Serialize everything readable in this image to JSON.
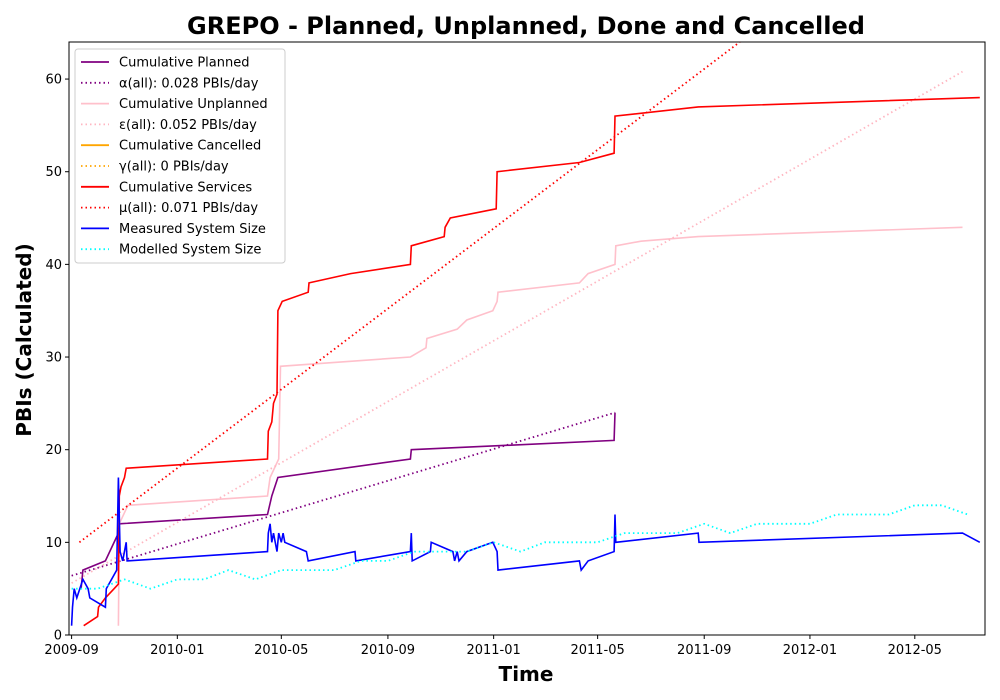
{
  "chart_data": {
    "type": "line",
    "title": "GREPO - Planned, Unplanned, Done  and Cancelled",
    "xlabel": "Time",
    "ylabel": "PBIs (Calculated)",
    "xlim": [
      "2009-08-29",
      "2012-07-21"
    ],
    "ylim": [
      0,
      64
    ],
    "x_ticks": [
      "2009-09",
      "2010-01",
      "2010-05",
      "2010-09",
      "2011-01",
      "2011-05",
      "2011-09",
      "2012-01",
      "2012-05"
    ],
    "y_ticks": [
      0,
      10,
      20,
      30,
      40,
      50,
      60
    ],
    "grid": false,
    "legend_position": "top-left",
    "series": [
      {
        "name": "Cumulative Planned",
        "color": "#800080",
        "style": "solid",
        "points": [
          [
            "2009-09-12",
            5
          ],
          [
            "2009-09-14",
            7
          ],
          [
            "2009-10-10",
            8
          ],
          [
            "2009-10-25",
            11
          ],
          [
            "2009-10-26",
            12
          ],
          [
            "2010-04-15",
            13
          ],
          [
            "2010-04-20",
            15
          ],
          [
            "2010-04-27",
            17
          ],
          [
            "2010-09-27",
            19
          ],
          [
            "2010-09-28",
            20
          ],
          [
            "2011-05-20",
            21
          ],
          [
            "2011-05-21",
            24
          ]
        ]
      },
      {
        "name": "α(all): 0.028 PBIs/day",
        "color": "#800080",
        "style": "dotted",
        "points": [
          [
            "2009-09-01",
            6.4
          ],
          [
            "2011-05-21",
            24
          ]
        ]
      },
      {
        "name": "Cumulative Unplanned",
        "color": "#ffc0cb",
        "style": "solid",
        "points": [
          [
            "2009-10-25",
            1
          ],
          [
            "2009-10-26",
            12
          ],
          [
            "2009-11-05",
            14
          ],
          [
            "2010-04-15",
            15
          ],
          [
            "2010-04-18",
            17
          ],
          [
            "2010-04-28",
            19
          ],
          [
            "2010-04-30",
            29
          ],
          [
            "2010-09-27",
            30
          ],
          [
            "2010-10-15",
            31
          ],
          [
            "2010-10-16",
            32
          ],
          [
            "2010-11-20",
            33
          ],
          [
            "2010-12-01",
            34
          ],
          [
            "2010-12-31",
            35
          ],
          [
            "2011-01-05",
            36
          ],
          [
            "2011-01-06",
            37
          ],
          [
            "2011-04-10",
            38
          ],
          [
            "2011-04-20",
            39
          ],
          [
            "2011-05-21",
            40
          ],
          [
            "2011-05-22",
            42
          ],
          [
            "2011-06-20",
            42.5
          ],
          [
            "2011-08-25",
            43
          ],
          [
            "2012-06-25",
            44
          ]
        ]
      },
      {
        "name": "ε(all): 0.052 PBIs/day",
        "color": "#ffb6c1",
        "style": "dotted",
        "points": [
          [
            "2009-09-01",
            5.6
          ],
          [
            "2012-06-25",
            60.8
          ]
        ]
      },
      {
        "name": "Cumulative Cancelled",
        "color": "#ffa500",
        "style": "solid",
        "points": []
      },
      {
        "name": "γ(all): 0 PBIs/day",
        "color": "#ffa500",
        "style": "dotted",
        "points": []
      },
      {
        "name": "Cumulative Services",
        "color": "#ff0000",
        "style": "solid",
        "points": [
          [
            "2009-09-15",
            1
          ],
          [
            "2009-10-01",
            2
          ],
          [
            "2009-10-02",
            3
          ],
          [
            "2009-10-10",
            4
          ],
          [
            "2009-10-20",
            5
          ],
          [
            "2009-10-25",
            5.5
          ],
          [
            "2009-10-26",
            15
          ],
          [
            "2009-10-28",
            16
          ],
          [
            "2009-11-01",
            17
          ],
          [
            "2009-11-03",
            18
          ],
          [
            "2010-04-15",
            19
          ],
          [
            "2010-04-16",
            22
          ],
          [
            "2010-04-20",
            23
          ],
          [
            "2010-04-22",
            25
          ],
          [
            "2010-04-26",
            26
          ],
          [
            "2010-04-27",
            35
          ],
          [
            "2010-05-02",
            36
          ],
          [
            "2010-06-01",
            37
          ],
          [
            "2010-06-02",
            38
          ],
          [
            "2010-07-20",
            39
          ],
          [
            "2010-09-27",
            40
          ],
          [
            "2010-09-28",
            42
          ],
          [
            "2010-11-05",
            43
          ],
          [
            "2010-11-06",
            44
          ],
          [
            "2010-11-12",
            45
          ],
          [
            "2011-01-04",
            46
          ],
          [
            "2011-01-05",
            50
          ],
          [
            "2011-04-10",
            51
          ],
          [
            "2011-05-20",
            52
          ],
          [
            "2011-05-21",
            56
          ],
          [
            "2011-08-25",
            57
          ],
          [
            "2012-07-15",
            58
          ]
        ]
      },
      {
        "name": "μ(all): 0.071 PBIs/day",
        "color": "#ff0000",
        "style": "dotted",
        "points": [
          [
            "2009-09-10",
            10
          ],
          [
            "2011-10-12",
            64
          ]
        ]
      },
      {
        "name": "Measured System Size",
        "color": "#0000ff",
        "style": "solid",
        "points": [
          [
            "2009-09-01",
            1
          ],
          [
            "2009-09-02",
            3
          ],
          [
            "2009-09-04",
            5
          ],
          [
            "2009-09-07",
            4
          ],
          [
            "2009-09-14",
            6
          ],
          [
            "2009-09-20",
            5
          ],
          [
            "2009-09-22",
            4
          ],
          [
            "2009-10-10",
            3
          ],
          [
            "2009-10-11",
            5
          ],
          [
            "2009-10-23",
            7
          ],
          [
            "2009-10-25",
            17
          ],
          [
            "2009-10-27",
            9
          ],
          [
            "2009-10-30",
            8
          ],
          [
            "2009-11-03",
            10
          ],
          [
            "2009-11-04",
            8
          ],
          [
            "2010-04-15",
            9
          ],
          [
            "2010-04-16",
            11
          ],
          [
            "2010-04-18",
            12
          ],
          [
            "2010-04-20",
            10
          ],
          [
            "2010-04-22",
            11
          ],
          [
            "2010-04-26",
            9
          ],
          [
            "2010-04-28",
            11
          ],
          [
            "2010-05-01",
            10
          ],
          [
            "2010-05-03",
            11
          ],
          [
            "2010-05-05",
            10
          ],
          [
            "2010-05-30",
            9
          ],
          [
            "2010-06-01",
            8
          ],
          [
            "2010-07-25",
            9
          ],
          [
            "2010-07-26",
            8
          ],
          [
            "2010-09-27",
            9
          ],
          [
            "2010-09-28",
            11
          ],
          [
            "2010-09-29",
            8
          ],
          [
            "2010-10-20",
            9
          ],
          [
            "2010-10-21",
            10
          ],
          [
            "2010-11-15",
            9
          ],
          [
            "2010-11-17",
            8
          ],
          [
            "2010-11-20",
            9
          ],
          [
            "2010-11-22",
            8
          ],
          [
            "2010-12-01",
            9
          ],
          [
            "2010-12-31",
            10
          ],
          [
            "2011-01-05",
            9
          ],
          [
            "2011-01-06",
            7
          ],
          [
            "2011-04-10",
            8
          ],
          [
            "2011-04-12",
            7
          ],
          [
            "2011-04-20",
            8
          ],
          [
            "2011-05-20",
            9
          ],
          [
            "2011-05-21",
            13
          ],
          [
            "2011-05-22",
            10
          ],
          [
            "2011-08-25",
            11
          ],
          [
            "2011-08-26",
            10
          ],
          [
            "2012-06-25",
            11
          ],
          [
            "2012-07-15",
            10
          ]
        ]
      },
      {
        "name": "Modelled System Size",
        "color": "#00ffff",
        "style": "dotted",
        "points": [
          [
            "2009-09-01",
            5
          ],
          [
            "2009-10-01",
            5
          ],
          [
            "2009-11-01",
            6
          ],
          [
            "2009-12-01",
            5
          ],
          [
            "2010-01-01",
            6
          ],
          [
            "2010-02-01",
            6
          ],
          [
            "2010-03-01",
            7
          ],
          [
            "2010-04-01",
            6
          ],
          [
            "2010-05-01",
            7
          ],
          [
            "2010-06-01",
            7
          ],
          [
            "2010-07-01",
            7
          ],
          [
            "2010-08-01",
            8
          ],
          [
            "2010-09-01",
            8
          ],
          [
            "2010-10-01",
            9
          ],
          [
            "2010-11-01",
            9
          ],
          [
            "2010-12-01",
            9
          ],
          [
            "2011-01-01",
            10
          ],
          [
            "2011-02-01",
            9
          ],
          [
            "2011-03-01",
            10
          ],
          [
            "2011-04-01",
            10
          ],
          [
            "2011-05-01",
            10
          ],
          [
            "2011-06-01",
            11
          ],
          [
            "2011-07-01",
            11
          ],
          [
            "2011-08-01",
            11
          ],
          [
            "2011-09-01",
            12
          ],
          [
            "2011-10-01",
            11
          ],
          [
            "2011-11-01",
            12
          ],
          [
            "2011-12-01",
            12
          ],
          [
            "2012-01-01",
            12
          ],
          [
            "2012-02-01",
            13
          ],
          [
            "2012-03-01",
            13
          ],
          [
            "2012-04-01",
            13
          ],
          [
            "2012-05-01",
            14
          ],
          [
            "2012-06-01",
            14
          ],
          [
            "2012-07-01",
            13
          ]
        ]
      }
    ]
  }
}
